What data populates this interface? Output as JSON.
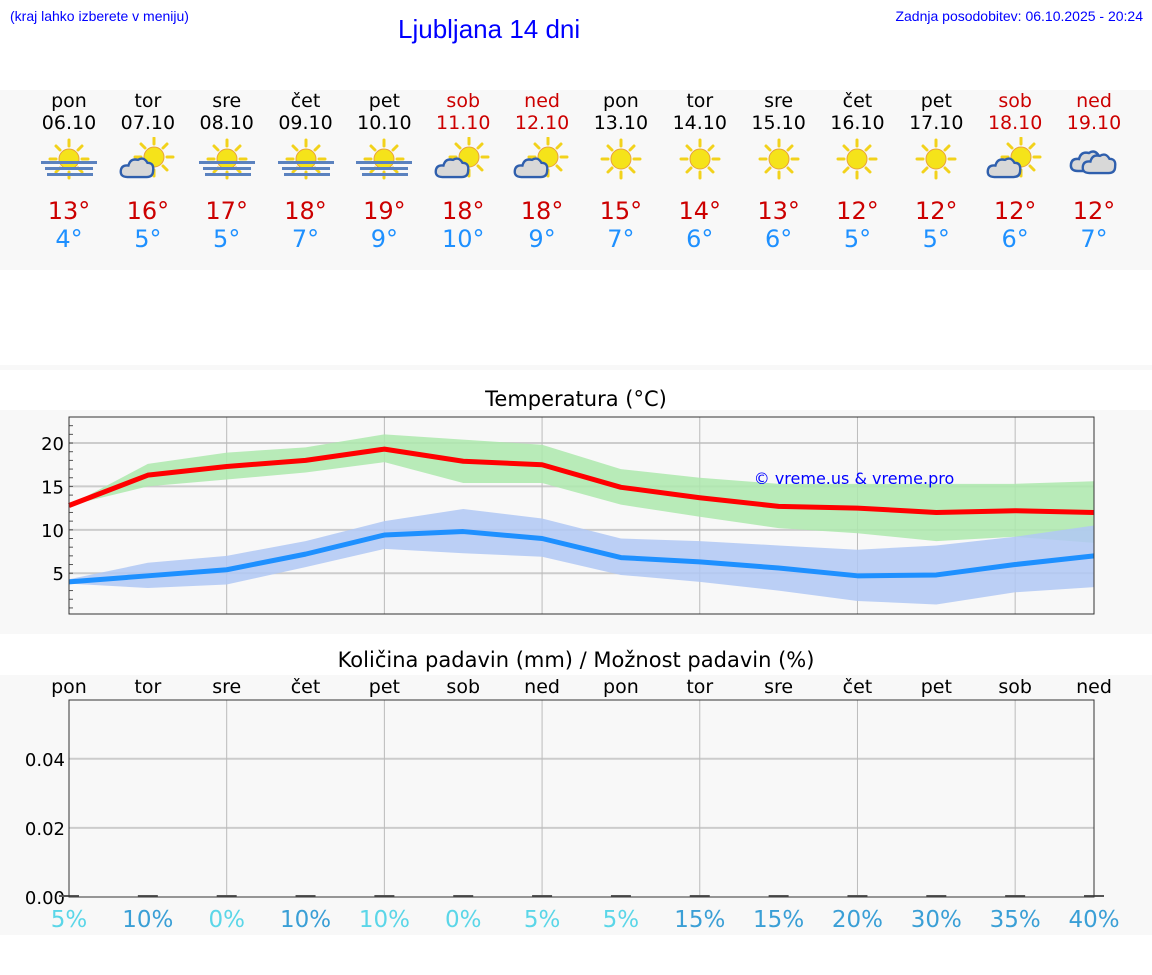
{
  "header": {
    "hint": "(kraj lahko izberete v meniju)",
    "title": "Ljubljana 14 dni",
    "updated": "Zadnja posodobitev: 06.10.2025 - 20:24"
  },
  "days": [
    {
      "name": "pon",
      "date": "06.10",
      "weekend": false,
      "icon": "sun-fog-icon",
      "max": "13°",
      "min": "4°"
    },
    {
      "name": "tor",
      "date": "07.10",
      "weekend": false,
      "icon": "partly-cloudy-icon",
      "max": "16°",
      "min": "5°"
    },
    {
      "name": "sre",
      "date": "08.10",
      "weekend": false,
      "icon": "sun-fog-icon",
      "max": "17°",
      "min": "5°"
    },
    {
      "name": "čet",
      "date": "09.10",
      "weekend": false,
      "icon": "sun-fog-icon",
      "max": "18°",
      "min": "7°"
    },
    {
      "name": "pet",
      "date": "10.10",
      "weekend": false,
      "icon": "sun-fog-icon",
      "max": "19°",
      "min": "9°"
    },
    {
      "name": "sob",
      "date": "11.10",
      "weekend": true,
      "icon": "partly-cloudy-icon",
      "max": "18°",
      "min": "10°"
    },
    {
      "name": "ned",
      "date": "12.10",
      "weekend": true,
      "icon": "partly-cloudy-icon",
      "max": "18°",
      "min": "9°"
    },
    {
      "name": "pon",
      "date": "13.10",
      "weekend": false,
      "icon": "sun-icon",
      "max": "15°",
      "min": "7°"
    },
    {
      "name": "tor",
      "date": "14.10",
      "weekend": false,
      "icon": "sun-icon",
      "max": "14°",
      "min": "6°"
    },
    {
      "name": "sre",
      "date": "15.10",
      "weekend": false,
      "icon": "sun-icon",
      "max": "13°",
      "min": "6°"
    },
    {
      "name": "čet",
      "date": "16.10",
      "weekend": false,
      "icon": "sun-icon",
      "max": "12°",
      "min": "5°"
    },
    {
      "name": "pet",
      "date": "17.10",
      "weekend": false,
      "icon": "sun-icon",
      "max": "12°",
      "min": "5°"
    },
    {
      "name": "sob",
      "date": "18.10",
      "weekend": true,
      "icon": "partly-cloudy-icon",
      "max": "12°",
      "min": "6°"
    },
    {
      "name": "ned",
      "date": "19.10",
      "weekend": true,
      "icon": "cloudy-icon",
      "max": "12°",
      "min": "7°"
    }
  ],
  "colors": {
    "max": "#cc0000",
    "min": "#1e90ff",
    "max_line": "#ff0000",
    "max_band": "#ade9ad",
    "min_line": "#1e90ff",
    "min_band": "#b0c8f4",
    "pct_low": "#5bd6e8",
    "pct_high": "#3a9fd6",
    "watermark": "#0000ff"
  },
  "chart_data": [
    {
      "type": "line",
      "title": "Temperatura (°C)",
      "watermark": "© vreme.us & vreme.pro",
      "x": [
        "06.10",
        "07.10",
        "08.10",
        "09.10",
        "10.10",
        "11.10",
        "12.10",
        "13.10",
        "14.10",
        "15.10",
        "16.10",
        "17.10",
        "18.10",
        "19.10"
      ],
      "ylim": [
        0.3,
        23
      ],
      "yticks": [
        5,
        10,
        15,
        20
      ],
      "grid": true,
      "series": [
        {
          "role": "max",
          "values": [
            12.8,
            16.3,
            17.3,
            18.0,
            19.3,
            17.9,
            17.5,
            14.9,
            13.7,
            12.7,
            12.5,
            12.0,
            12.2,
            12.0
          ],
          "band_upper": [
            12.8,
            17.6,
            18.9,
            19.5,
            21.0,
            20.4,
            19.8,
            17.0,
            16.0,
            15.3,
            15.3,
            15.3,
            15.3,
            15.6
          ],
          "band_lower": [
            12.8,
            15.0,
            15.8,
            16.6,
            17.8,
            15.4,
            15.4,
            12.9,
            11.5,
            10.2,
            9.6,
            8.7,
            9.2,
            8.5
          ]
        },
        {
          "role": "min",
          "values": [
            4.0,
            4.7,
            5.4,
            7.2,
            9.4,
            9.8,
            9.0,
            6.8,
            6.3,
            5.6,
            4.7,
            4.8,
            6.0,
            7.0
          ],
          "band_upper": [
            4.3,
            6.2,
            7.0,
            8.7,
            11.0,
            12.4,
            11.3,
            9.0,
            8.7,
            8.2,
            7.7,
            8.2,
            9.2,
            10.5
          ],
          "band_lower": [
            3.8,
            3.3,
            3.7,
            5.7,
            7.8,
            7.3,
            6.9,
            4.8,
            4.0,
            3.0,
            1.8,
            1.4,
            2.8,
            3.4
          ]
        }
      ]
    },
    {
      "type": "bar",
      "title": "Količina padavin (mm) / Možnost padavin (%)",
      "categories": [
        "pon",
        "tor",
        "sre",
        "čet",
        "pet",
        "sob",
        "ned",
        "pon",
        "tor",
        "sre",
        "čet",
        "pet",
        "sob",
        "ned"
      ],
      "values": [
        0,
        0,
        0,
        0,
        0,
        0,
        0,
        0,
        0,
        0,
        0,
        0,
        0,
        0
      ],
      "ylim": [
        0,
        0.057
      ],
      "yticks": [
        "0.00",
        "0.02",
        "0.04"
      ],
      "grid": true,
      "probability": [
        "5%",
        "10%",
        "0%",
        "10%",
        "10%",
        "0%",
        "5%",
        "5%",
        "15%",
        "15%",
        "20%",
        "30%",
        "35%",
        "40%"
      ],
      "probability_level": [
        "low",
        "high",
        "low",
        "high",
        "low",
        "low",
        "low",
        "low",
        "high",
        "high",
        "high",
        "high",
        "high",
        "high"
      ]
    }
  ]
}
